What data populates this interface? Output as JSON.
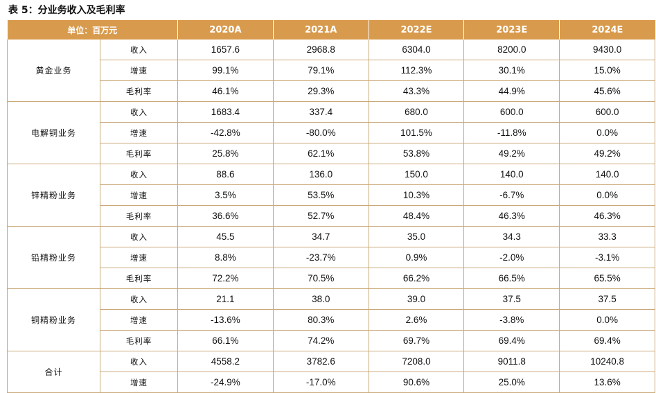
{
  "table_title": "表 5：分业务收入及毛利率",
  "header": {
    "unit": "单位：百万元",
    "years": [
      "2020A",
      "2021A",
      "2022E",
      "2023E",
      "2024E"
    ]
  },
  "segments": [
    {
      "name": "黄金业务",
      "rows": [
        {
          "metric": "收入",
          "values": [
            "1657.6",
            "2968.8",
            "6304.0",
            "8200.0",
            "9430.0"
          ]
        },
        {
          "metric": "增速",
          "values": [
            "99.1%",
            "79.1%",
            "112.3%",
            "30.1%",
            "15.0%"
          ]
        },
        {
          "metric": "毛利率",
          "values": [
            "46.1%",
            "29.3%",
            "43.3%",
            "44.9%",
            "45.6%"
          ]
        }
      ]
    },
    {
      "name": "电解铜业务",
      "rows": [
        {
          "metric": "收入",
          "values": [
            "1683.4",
            "337.4",
            "680.0",
            "600.0",
            "600.0"
          ]
        },
        {
          "metric": "增速",
          "values": [
            "-42.8%",
            "-80.0%",
            "101.5%",
            "-11.8%",
            "0.0%"
          ]
        },
        {
          "metric": "毛利率",
          "values": [
            "25.8%",
            "62.1%",
            "53.8%",
            "49.2%",
            "49.2%"
          ]
        }
      ]
    },
    {
      "name": "锌精粉业务",
      "rows": [
        {
          "metric": "收入",
          "values": [
            "88.6",
            "136.0",
            "150.0",
            "140.0",
            "140.0"
          ]
        },
        {
          "metric": "增速",
          "values": [
            "3.5%",
            "53.5%",
            "10.3%",
            "-6.7%",
            "0.0%"
          ]
        },
        {
          "metric": "毛利率",
          "values": [
            "36.6%",
            "52.7%",
            "48.4%",
            "46.3%",
            "46.3%"
          ]
        }
      ]
    },
    {
      "name": "铅精粉业务",
      "rows": [
        {
          "metric": "收入",
          "values": [
            "45.5",
            "34.7",
            "35.0",
            "34.3",
            "33.3"
          ]
        },
        {
          "metric": "增速",
          "values": [
            "8.8%",
            "-23.7%",
            "0.9%",
            "-2.0%",
            "-3.1%"
          ]
        },
        {
          "metric": "毛利率",
          "values": [
            "72.2%",
            "70.5%",
            "66.2%",
            "66.5%",
            "65.5%"
          ]
        }
      ]
    },
    {
      "name": "铜精粉业务",
      "rows": [
        {
          "metric": "收入",
          "values": [
            "21.1",
            "38.0",
            "39.0",
            "37.5",
            "37.5"
          ]
        },
        {
          "metric": "增速",
          "values": [
            "-13.6%",
            "80.3%",
            "2.6%",
            "-3.8%",
            "0.0%"
          ]
        },
        {
          "metric": "毛利率",
          "values": [
            "66.1%",
            "74.2%",
            "69.7%",
            "69.4%",
            "69.4%"
          ]
        }
      ]
    },
    {
      "name": "合计",
      "rows": [
        {
          "metric": "收入",
          "values": [
            "4558.2",
            "3782.6",
            "7208.0",
            "9011.8",
            "10240.8"
          ]
        },
        {
          "metric": "增速",
          "values": [
            "-24.9%",
            "-17.0%",
            "90.6%",
            "25.0%",
            "13.6%"
          ]
        }
      ]
    }
  ],
  "colors": {
    "header_bg": "#d89a4c",
    "header_text": "#ffffff",
    "grid_line": "#c9a97a"
  }
}
